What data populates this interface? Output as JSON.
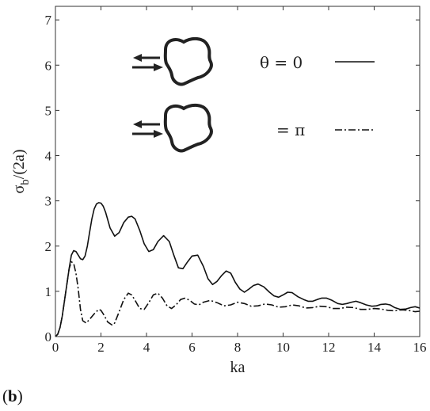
{
  "chart_data": {
    "type": "line",
    "xlabel": "ka",
    "ylabel_main": "σ",
    "ylabel_sub": "b",
    "ylabel_rest": "/(2a)",
    "xlim": [
      0,
      16
    ],
    "ylim": [
      0,
      7.3
    ],
    "xticks": [
      0,
      2,
      4,
      6,
      8,
      10,
      12,
      14,
      16
    ],
    "yticks": [
      0,
      1,
      2,
      3,
      4,
      5,
      6,
      7
    ],
    "grid": false,
    "legend_placement": "top-right",
    "series": [
      {
        "name": "θ = 0",
        "style": "solid",
        "x": [
          0,
          0.1,
          0.2,
          0.3,
          0.4,
          0.5,
          0.6,
          0.7,
          0.8,
          0.9,
          1.0,
          1.1,
          1.2,
          1.3,
          1.4,
          1.5,
          1.6,
          1.7,
          1.8,
          1.9,
          2.0,
          2.1,
          2.2,
          2.4,
          2.6,
          2.8,
          3.0,
          3.2,
          3.35,
          3.5,
          3.7,
          3.9,
          4.1,
          4.3,
          4.5,
          4.75,
          5.0,
          5.2,
          5.4,
          5.6,
          5.8,
          6.0,
          6.25,
          6.5,
          6.7,
          6.9,
          7.1,
          7.3,
          7.5,
          7.7,
          7.9,
          8.1,
          8.3,
          8.5,
          8.7,
          8.9,
          9.15,
          9.4,
          9.6,
          9.8,
          10.0,
          10.2,
          10.4,
          10.65,
          10.9,
          11.1,
          11.3,
          11.5,
          11.7,
          11.9,
          12.15,
          12.4,
          12.6,
          12.8,
          13.0,
          13.2,
          13.4,
          13.65,
          13.9,
          14.1,
          14.3,
          14.5,
          14.7,
          14.9,
          15.15,
          15.4,
          15.6,
          15.8,
          16.0
        ],
        "y": [
          0,
          0.05,
          0.2,
          0.45,
          0.8,
          1.15,
          1.5,
          1.8,
          1.9,
          1.88,
          1.8,
          1.72,
          1.7,
          1.78,
          2.0,
          2.3,
          2.6,
          2.82,
          2.93,
          2.96,
          2.95,
          2.88,
          2.75,
          2.4,
          2.22,
          2.3,
          2.52,
          2.64,
          2.66,
          2.6,
          2.35,
          2.05,
          1.88,
          1.92,
          2.1,
          2.23,
          2.1,
          1.8,
          1.52,
          1.5,
          1.65,
          1.78,
          1.8,
          1.55,
          1.28,
          1.15,
          1.22,
          1.35,
          1.45,
          1.4,
          1.2,
          1.05,
          0.98,
          1.05,
          1.13,
          1.16,
          1.1,
          0.98,
          0.9,
          0.87,
          0.92,
          0.98,
          0.97,
          0.88,
          0.82,
          0.78,
          0.78,
          0.82,
          0.85,
          0.85,
          0.8,
          0.73,
          0.71,
          0.73,
          0.76,
          0.78,
          0.75,
          0.7,
          0.67,
          0.68,
          0.71,
          0.72,
          0.7,
          0.64,
          0.6,
          0.61,
          0.64,
          0.66,
          0.63
        ]
      },
      {
        "name": "= π",
        "style": "dashdot",
        "x": [
          0,
          0.1,
          0.2,
          0.3,
          0.4,
          0.5,
          0.6,
          0.7,
          0.8,
          0.9,
          1.0,
          1.1,
          1.2,
          1.35,
          1.5,
          1.7,
          1.9,
          2.0,
          2.1,
          2.3,
          2.5,
          2.6,
          2.8,
          3.0,
          3.2,
          3.35,
          3.5,
          3.7,
          3.9,
          4.1,
          4.3,
          4.5,
          4.7,
          4.9,
          5.1,
          5.3,
          5.5,
          5.7,
          5.9,
          6.1,
          6.3,
          6.5,
          6.8,
          7.1,
          7.4,
          7.7,
          8.0,
          8.3,
          8.6,
          8.9,
          9.2,
          9.5,
          9.8,
          10.1,
          10.4,
          10.7,
          11.0,
          11.3,
          11.6,
          11.9,
          12.2,
          12.5,
          12.8,
          13.1,
          13.4,
          13.7,
          14.0,
          14.3,
          14.6,
          14.9,
          15.2,
          15.5,
          15.8,
          16.0
        ],
        "y": [
          0,
          0.05,
          0.2,
          0.45,
          0.8,
          1.15,
          1.5,
          1.65,
          1.62,
          1.4,
          1.05,
          0.6,
          0.35,
          0.3,
          0.38,
          0.5,
          0.6,
          0.58,
          0.5,
          0.32,
          0.25,
          0.3,
          0.55,
          0.82,
          0.96,
          0.92,
          0.8,
          0.62,
          0.6,
          0.75,
          0.92,
          0.96,
          0.85,
          0.68,
          0.62,
          0.7,
          0.82,
          0.85,
          0.8,
          0.72,
          0.7,
          0.76,
          0.8,
          0.75,
          0.68,
          0.7,
          0.76,
          0.73,
          0.67,
          0.68,
          0.72,
          0.7,
          0.65,
          0.66,
          0.7,
          0.68,
          0.63,
          0.64,
          0.67,
          0.66,
          0.62,
          0.62,
          0.65,
          0.64,
          0.6,
          0.6,
          0.62,
          0.61,
          0.58,
          0.57,
          0.59,
          0.58,
          0.55,
          0.56
        ]
      }
    ]
  },
  "legend": {
    "entry_0": "θ = 0",
    "entry_1": "= π"
  },
  "panel_label": "b"
}
